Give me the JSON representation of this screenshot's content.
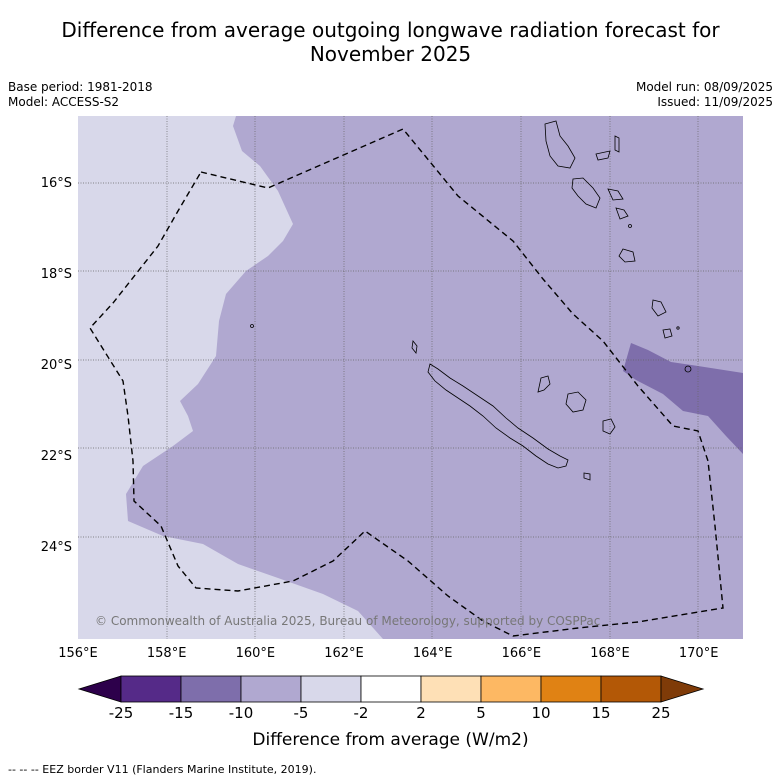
{
  "title_line1": "Difference from average outgoing longwave radiation forecast for",
  "title_line2": "November 2025",
  "meta": {
    "base_period": "Base period: 1981-2018",
    "model": "Model: ACCESS-S2",
    "model_run": "Model run: 08/09/2025",
    "issued": "Issued: 11/09/2025"
  },
  "copyright": "© Commonwealth of Australia 2025, Bureau of Meteorology, supported by COSPPac",
  "footnote": "--  --  -- EEZ border V11 (Flanders Marine Institute, 2019).",
  "chart_data": {
    "type": "heatmap",
    "title": "Difference from average outgoing longwave radiation forecast for November 2025",
    "xlim": [
      156,
      171
    ],
    "ylim": [
      -26.0,
      -14.5
    ],
    "x_ticks": [
      "156°E",
      "158°E",
      "160°E",
      "162°E",
      "164°E",
      "166°E",
      "168°E",
      "170°E"
    ],
    "y_ticks": [
      "16°S",
      "18°S",
      "20°S",
      "22°S",
      "24°S"
    ],
    "grid": true,
    "colorbar": {
      "label": "Difference from average (W/m2)",
      "ticks": [
        "-25",
        "-15",
        "-10",
        "-5",
        "-2",
        "2",
        "5",
        "10",
        "15",
        "25"
      ],
      "colors": [
        "#552a88",
        "#7e6eab",
        "#b0a8d0",
        "#d8d8ea",
        "#ffffff",
        "#fee0b6",
        "#fdb863",
        "#e08214",
        "#b35806"
      ],
      "extend_low_color": "#2d004b",
      "extend_high_color": "#7f3b08"
    },
    "regions": [
      {
        "range": "-5 to -2",
        "color": "#d8d8ea",
        "location": "west"
      },
      {
        "range": "-10 to -5",
        "color": "#b0a8d0",
        "location": "most of map"
      },
      {
        "range": "-15 to -10",
        "color": "#7e6eab",
        "location": "east of New Caledonia near Loyalty Islands"
      }
    ]
  }
}
